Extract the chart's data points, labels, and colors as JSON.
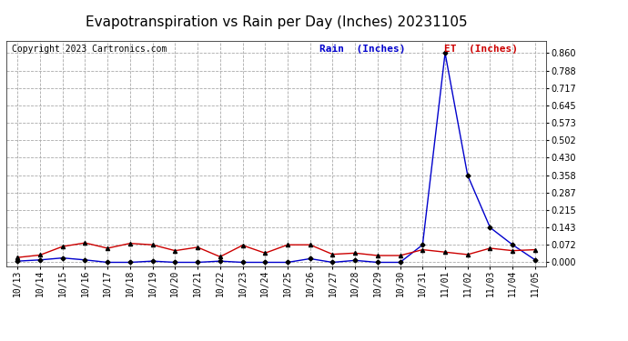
{
  "title": "Evapotranspiration vs Rain per Day (Inches) 20231105",
  "copyright": "Copyright 2023 Cartronics.com",
  "legend_rain": "Rain  (Inches)",
  "legend_et": "ET  (Inches)",
  "dates": [
    "10/13",
    "10/14",
    "10/15",
    "10/16",
    "10/17",
    "10/18",
    "10/19",
    "10/20",
    "10/21",
    "10/22",
    "10/23",
    "10/24",
    "10/25",
    "10/26",
    "10/27",
    "10/28",
    "10/29",
    "10/30",
    "10/31",
    "11/01",
    "11/02",
    "11/03",
    "11/04",
    "11/05"
  ],
  "rain": [
    0.005,
    0.01,
    0.018,
    0.01,
    0.0,
    0.0,
    0.005,
    0.0,
    0.0,
    0.005,
    0.0,
    0.0,
    0.0,
    0.015,
    0.0,
    0.008,
    0.0,
    0.0,
    0.072,
    0.86,
    0.358,
    0.143,
    0.072,
    0.01
  ],
  "et": [
    0.02,
    0.03,
    0.065,
    0.08,
    0.058,
    0.078,
    0.072,
    0.048,
    0.062,
    0.023,
    0.07,
    0.038,
    0.072,
    0.072,
    0.033,
    0.038,
    0.028,
    0.028,
    0.052,
    0.042,
    0.032,
    0.058,
    0.048,
    0.052
  ],
  "rain_color": "#0000cc",
  "et_color": "#cc0000",
  "background_color": "#ffffff",
  "grid_color": "#aaaaaa",
  "yticks": [
    0.0,
    0.072,
    0.143,
    0.215,
    0.287,
    0.358,
    0.43,
    0.502,
    0.573,
    0.645,
    0.717,
    0.788,
    0.86
  ],
  "ylim": [
    -0.015,
    0.91
  ],
  "title_fontsize": 11,
  "copyright_fontsize": 7,
  "legend_fontsize": 8,
  "tick_fontsize": 7
}
